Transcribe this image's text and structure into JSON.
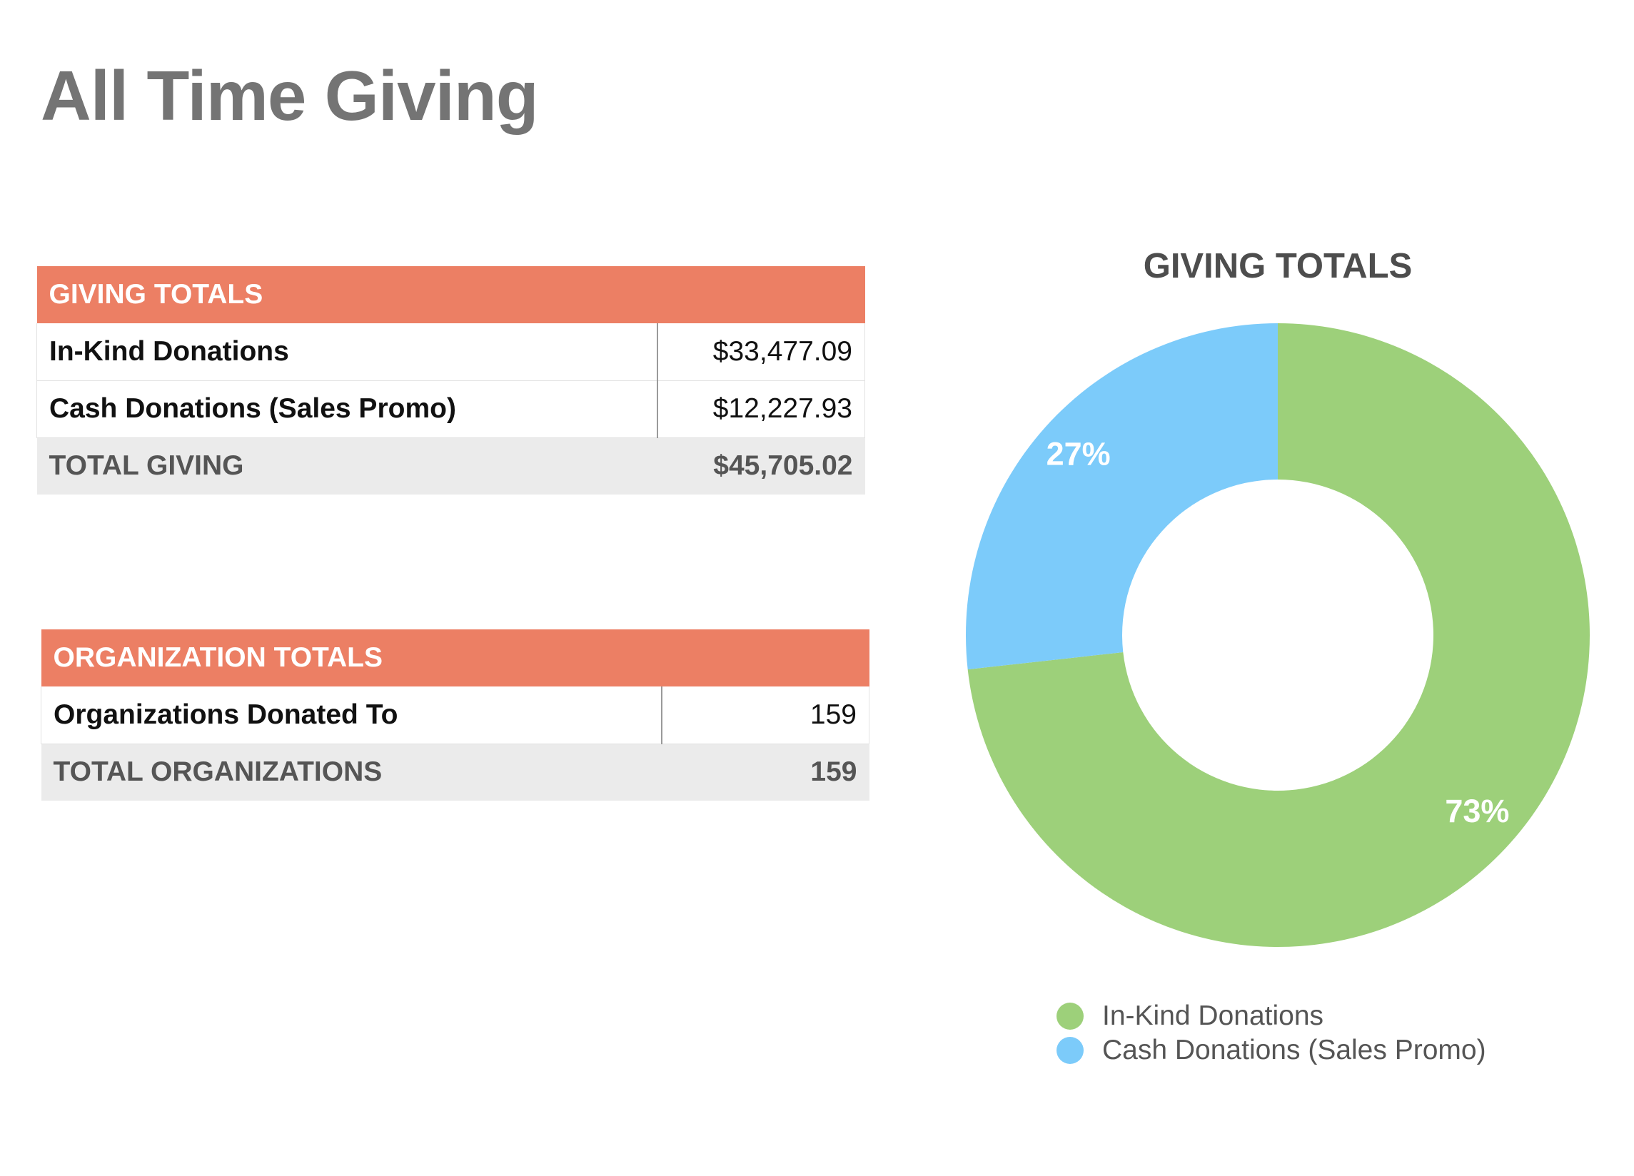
{
  "page": {
    "title": "All Time Giving"
  },
  "giving_table": {
    "header": "GIVING TOTALS",
    "rows": [
      {
        "label": "In-Kind Donations",
        "value": "$33,477.09"
      },
      {
        "label": "Cash Donations (Sales Promo)",
        "value": "$12,227.93"
      }
    ],
    "total": {
      "label": "TOTAL GIVING",
      "value": "$45,705.02"
    }
  },
  "org_table": {
    "header": "ORGANIZATION TOTALS",
    "rows": [
      {
        "label": "Organizations Donated To",
        "value": "159"
      }
    ],
    "total": {
      "label": "TOTAL ORGANIZATIONS",
      "value": "159"
    }
  },
  "colors": {
    "header_bg": "#ec7f64",
    "total_row_bg": "#ebebeb"
  },
  "chart_data": {
    "type": "pie",
    "title": "GIVING TOTALS",
    "donut": true,
    "start_angle_deg": 0,
    "categories": [
      "In-Kind Donations",
      "Cash Donations (Sales Promo)"
    ],
    "values": [
      33477.09,
      12227.93
    ],
    "data_labels": [
      "73%",
      "27%"
    ],
    "colors": [
      "#9dd07a",
      "#7ccbfa"
    ],
    "legend_position": "bottom"
  }
}
